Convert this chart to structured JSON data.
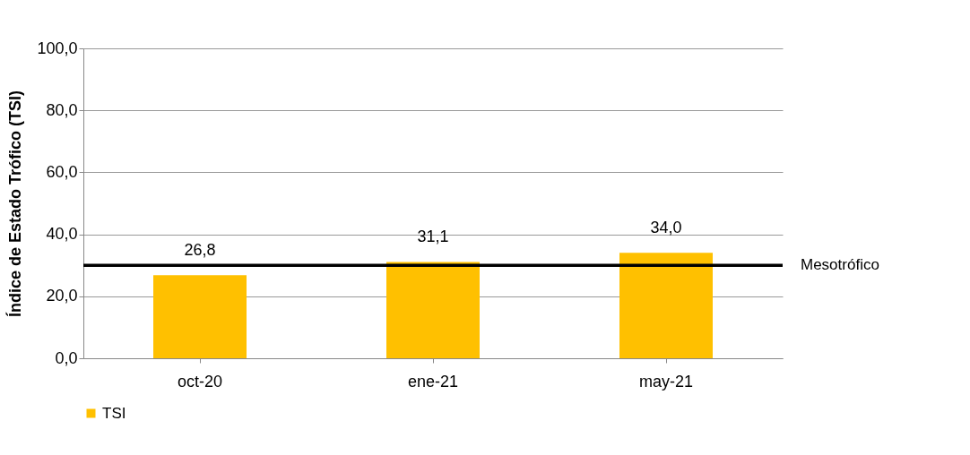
{
  "chart_data": {
    "type": "bar",
    "ylabel": "Índice de Estado Trófico (TSI)",
    "categories": [
      "oct-20",
      "ene-21",
      "may-21"
    ],
    "series": [
      {
        "name": "TSI",
        "color": "#ffc000",
        "values": [
          26.8,
          31.1,
          34.0
        ],
        "value_labels": [
          "26,8",
          "31,1",
          "34,0"
        ]
      }
    ],
    "ylim": [
      0,
      100
    ],
    "yticks": [
      {
        "value": 0,
        "label": "0,0"
      },
      {
        "value": 20,
        "label": "20,0"
      },
      {
        "value": 40,
        "label": "40,0"
      },
      {
        "value": 60,
        "label": "60,0"
      },
      {
        "value": 80,
        "label": "80,0"
      },
      {
        "value": 100,
        "label": "100,0"
      }
    ],
    "ref_lines": [
      {
        "axis": "y",
        "value": 30,
        "label": "Mesotrófico",
        "color": "#000000"
      }
    ],
    "grid": "y",
    "legend": "bottom"
  }
}
